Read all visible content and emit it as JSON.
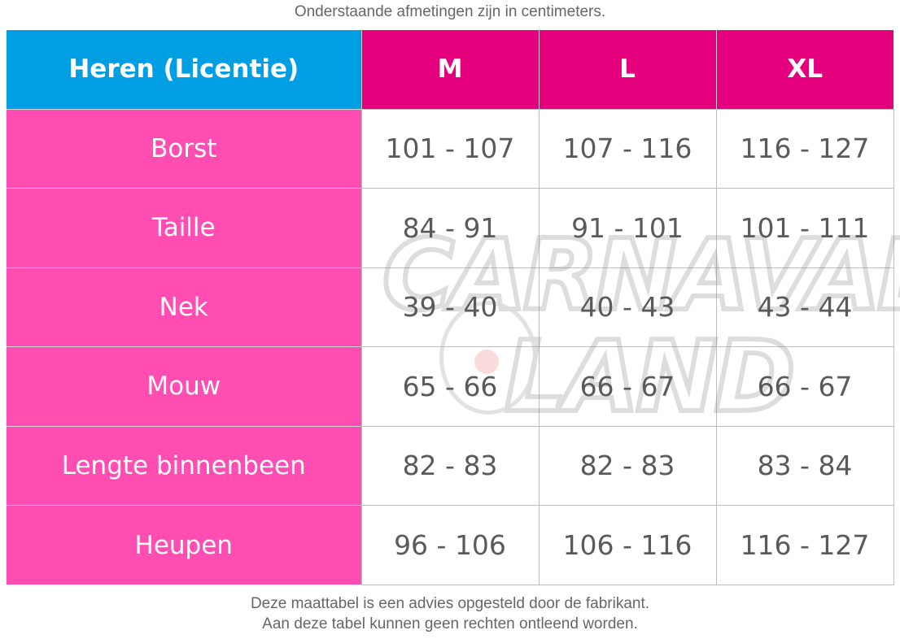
{
  "notes": {
    "top": "Onderstaande afmetingen zijn in centimeters.",
    "bottom_line1": "Deze maattabel is een advies opgesteld door de fabrikant.",
    "bottom_line2": "Aan deze tabel kunnen geen rechten ontleend worden."
  },
  "colors": {
    "header_corner": "#009fe3",
    "header_sizes": "#e5007e",
    "row_labels": "#ff4db2",
    "value_text": "#5a5a5a"
  },
  "watermark": {
    "logo_text": "CARNAVALS LAND",
    "icon": "clown-icon"
  },
  "table": {
    "corner": "Heren (Licentie)",
    "sizes": [
      "M",
      "L",
      "XL"
    ],
    "rows": [
      {
        "label": "Borst",
        "values": [
          "101 - 107",
          "107 - 116",
          "116 - 127"
        ]
      },
      {
        "label": "Taille",
        "values": [
          "84 - 91",
          "91 - 101",
          "101 - 111"
        ]
      },
      {
        "label": "Nek",
        "values": [
          "39 - 40",
          "40 - 43",
          "43 - 44"
        ]
      },
      {
        "label": "Mouw",
        "values": [
          "65 - 66",
          "66 - 67",
          "66 - 67"
        ]
      },
      {
        "label": "Lengte binnenbeen",
        "values": [
          "82 - 83",
          "82 - 83",
          "83 - 84"
        ]
      },
      {
        "label": "Heupen",
        "values": [
          "96 - 106",
          "106 - 116",
          "116 - 127"
        ]
      }
    ]
  }
}
